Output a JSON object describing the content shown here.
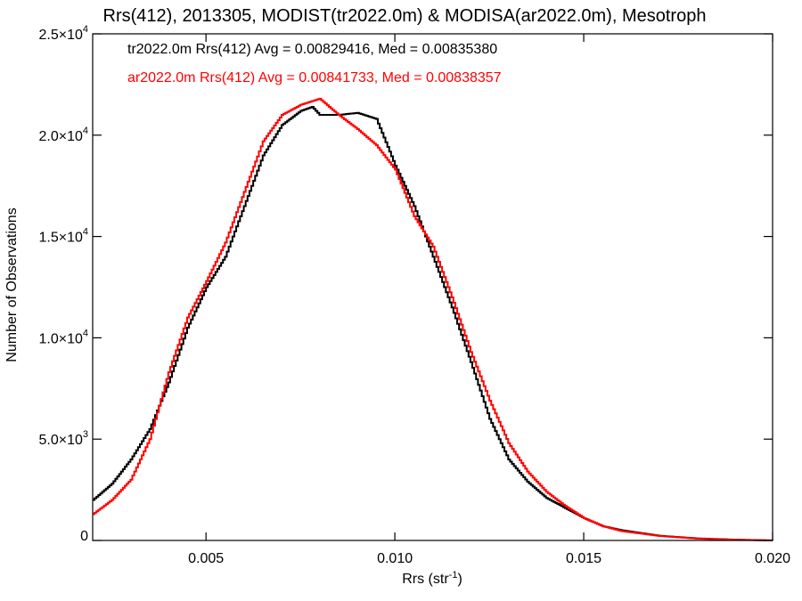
{
  "chart_data": {
    "type": "line",
    "title": "Rrs(412), 2013305, MODIST(tr2022.0m) & MODISA(ar2022.0m), Mesotroph",
    "xlabel": {
      "base": "Rrs (str",
      "sup": "-1",
      "tail": ")"
    },
    "ylabel": "Number of Observations",
    "xlim": [
      0.002,
      0.02
    ],
    "ylim": [
      0,
      25000
    ],
    "grid": false,
    "legend_placement": "top-left",
    "x_ticks": [
      {
        "value": 0.005,
        "label": "0.005"
      },
      {
        "value": 0.01,
        "label": "0.010"
      },
      {
        "value": 0.015,
        "label": "0.015"
      },
      {
        "value": 0.02,
        "label": "0.020"
      }
    ],
    "y_ticks": [
      {
        "value": 0,
        "mant": "0",
        "exp": ""
      },
      {
        "value": 5000,
        "mant": "5.0×10",
        "exp": "3"
      },
      {
        "value": 10000,
        "mant": "1.0×10",
        "exp": "4"
      },
      {
        "value": 15000,
        "mant": "1.5×10",
        "exp": "4"
      },
      {
        "value": 20000,
        "mant": "2.0×10",
        "exp": "4"
      },
      {
        "value": 25000,
        "mant": "2.5×10",
        "exp": "4"
      }
    ],
    "series": [
      {
        "name": "tr2022.0m Rrs(412) Avg = 0.00829416, Med = 0.00835380",
        "color": "#000000",
        "x": [
          0.002,
          0.0025,
          0.003,
          0.0035,
          0.004,
          0.0045,
          0.005,
          0.0055,
          0.006,
          0.0065,
          0.007,
          0.0075,
          0.0078,
          0.008,
          0.0085,
          0.009,
          0.0095,
          0.01,
          0.0105,
          0.011,
          0.0115,
          0.012,
          0.0125,
          0.013,
          0.0135,
          0.014,
          0.0145,
          0.015,
          0.0155,
          0.016,
          0.017,
          0.018,
          0.019,
          0.02
        ],
        "y": [
          2000,
          2800,
          4000,
          5500,
          7800,
          10500,
          12500,
          14000,
          16500,
          19000,
          20500,
          21200,
          21400,
          21000,
          21000,
          21100,
          20800,
          18500,
          16500,
          14000,
          11500,
          8800,
          6000,
          4000,
          2900,
          2100,
          1600,
          1100,
          700,
          500,
          230,
          100,
          40,
          0
        ]
      },
      {
        "name": "ar2022.0m Rrs(412) Avg = 0.00841733, Med = 0.00838357",
        "color": "#ff0000",
        "x": [
          0.002,
          0.0025,
          0.003,
          0.0035,
          0.004,
          0.0045,
          0.005,
          0.0055,
          0.006,
          0.0065,
          0.007,
          0.0075,
          0.008,
          0.0085,
          0.009,
          0.0095,
          0.01,
          0.0105,
          0.011,
          0.0115,
          0.012,
          0.0125,
          0.013,
          0.0135,
          0.014,
          0.0145,
          0.015,
          0.0155,
          0.016,
          0.017,
          0.018,
          0.019,
          0.02
        ],
        "y": [
          1300,
          2000,
          3000,
          5000,
          8300,
          11000,
          12800,
          14700,
          17200,
          19700,
          21000,
          21500,
          21800,
          21000,
          20300,
          19500,
          18300,
          16000,
          14500,
          12000,
          9300,
          6900,
          4800,
          3400,
          2400,
          1700,
          1100,
          700,
          460,
          220,
          90,
          35,
          0
        ]
      }
    ]
  }
}
